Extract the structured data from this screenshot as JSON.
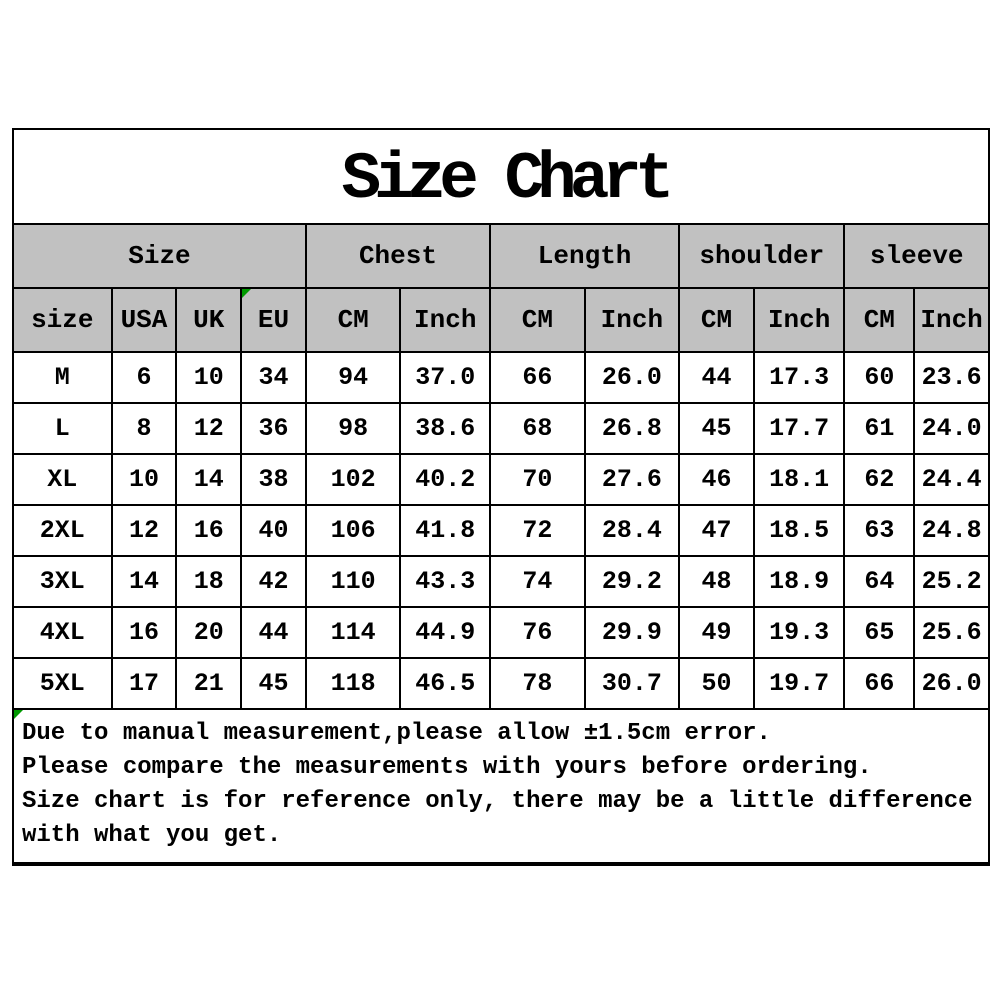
{
  "title": "Size Chart",
  "colors": {
    "background": "#FFFFFF",
    "header_bg": "#C1C1C1",
    "border": "#000000",
    "text": "#000000",
    "flag_green": "#009900"
  },
  "icons": {
    "eu_cell_flag": "green-corner-flag-icon",
    "notes_flag": "green-corner-flag-icon"
  },
  "table": {
    "groups": [
      {
        "label": "Size"
      },
      {
        "label": "Chest"
      },
      {
        "label": "Length"
      },
      {
        "label": "shoulder"
      },
      {
        "label": "sleeve"
      }
    ],
    "columns": [
      "size",
      "USA",
      "UK",
      "EU",
      "CM",
      "Inch",
      "CM",
      "Inch",
      "CM",
      "Inch",
      "CM",
      "Inch"
    ],
    "rows": [
      [
        "M",
        "6",
        "10",
        "34",
        "94",
        "37.0",
        "66",
        "26.0",
        "44",
        "17.3",
        "60",
        "23.6"
      ],
      [
        "L",
        "8",
        "12",
        "36",
        "98",
        "38.6",
        "68",
        "26.8",
        "45",
        "17.7",
        "61",
        "24.0"
      ],
      [
        "XL",
        "10",
        "14",
        "38",
        "102",
        "40.2",
        "70",
        "27.6",
        "46",
        "18.1",
        "62",
        "24.4"
      ],
      [
        "2XL",
        "12",
        "16",
        "40",
        "106",
        "41.8",
        "72",
        "28.4",
        "47",
        "18.5",
        "63",
        "24.8"
      ],
      [
        "3XL",
        "14",
        "18",
        "42",
        "110",
        "43.3",
        "74",
        "29.2",
        "48",
        "18.9",
        "64",
        "25.2"
      ],
      [
        "4XL",
        "16",
        "20",
        "44",
        "114",
        "44.9",
        "76",
        "29.9",
        "49",
        "19.3",
        "65",
        "25.6"
      ],
      [
        "5XL",
        "17",
        "21",
        "45",
        "118",
        "46.5",
        "78",
        "30.7",
        "50",
        "19.7",
        "66",
        "26.0"
      ]
    ]
  },
  "notes": {
    "lines": [
      "Due to manual measurement,please allow ±1.5cm error.",
      "Please compare the measurements with yours before ordering.",
      "Size chart is for reference only, there may be a little difference",
      "with what you get."
    ]
  }
}
